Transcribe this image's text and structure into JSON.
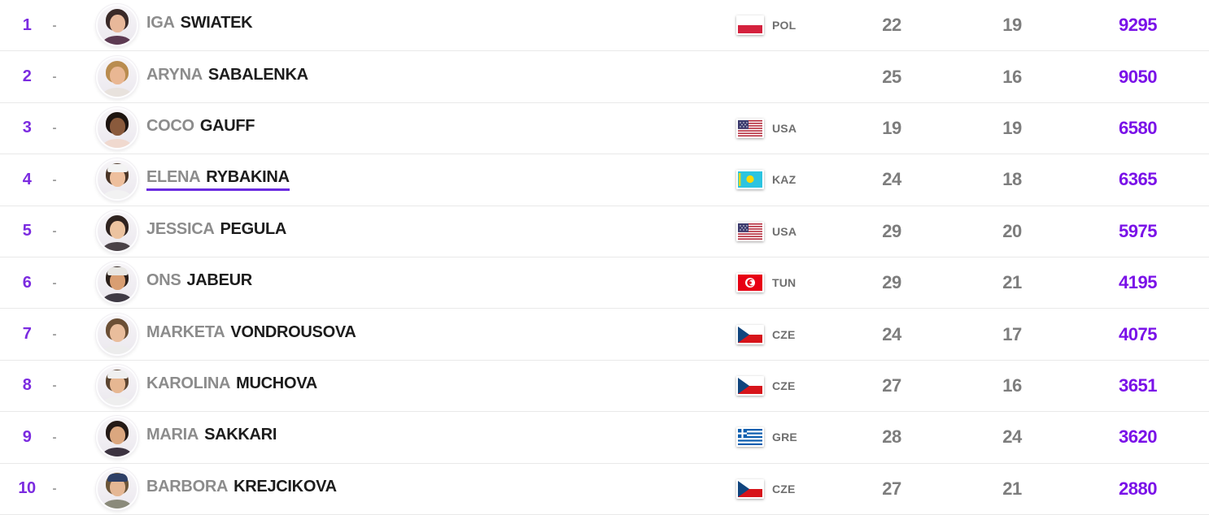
{
  "colors": {
    "accent_purple": "#7a12e8",
    "rank_purple": "#7b2be0",
    "highlight_underline": "#6a2be0",
    "first_name_gray": "#8c8c8c",
    "last_name_black": "#1c1c1c",
    "stat_gray": "#7d7d7d",
    "divider": "#e9e9e9"
  },
  "players": [
    {
      "rank": "1",
      "movement": "-",
      "first_name": "IGA",
      "last_name": "SWIATEK",
      "country_code": "POL",
      "age": "22",
      "tournaments": "19",
      "points": "9295",
      "highlighted": false,
      "avatar": {
        "hair": "#3a2a28",
        "skin": "#e8b89a",
        "shirt": "#5d3a52",
        "headwear": null
      }
    },
    {
      "rank": "2",
      "movement": "-",
      "first_name": "ARYNA",
      "last_name": "SABALENKA",
      "country_code": "",
      "age": "25",
      "tournaments": "16",
      "points": "9050",
      "highlighted": false,
      "avatar": {
        "hair": "#b98c4f",
        "skin": "#e9b793",
        "shirt": "#e8e2dd",
        "headwear": null
      }
    },
    {
      "rank": "3",
      "movement": "-",
      "first_name": "COCO",
      "last_name": "GAUFF",
      "country_code": "USA",
      "age": "19",
      "tournaments": "19",
      "points": "6580",
      "highlighted": false,
      "avatar": {
        "hair": "#1d1410",
        "skin": "#8a5a3c",
        "shirt": "#f0d9cf",
        "headwear": null
      }
    },
    {
      "rank": "4",
      "movement": "-",
      "first_name": "ELENA",
      "last_name": "RYBAKINA",
      "country_code": "KAZ",
      "age": "24",
      "tournaments": "18",
      "points": "6365",
      "highlighted": true,
      "avatar": {
        "hair": "#4a3527",
        "skin": "#eebf9d",
        "shirt": "#f2f2f2",
        "headwear": "#f3f3f3"
      }
    },
    {
      "rank": "5",
      "movement": "-",
      "first_name": "JESSICA",
      "last_name": "PEGULA",
      "country_code": "USA",
      "age": "29",
      "tournaments": "20",
      "points": "5975",
      "highlighted": false,
      "avatar": {
        "hair": "#2f2320",
        "skin": "#ecc3a0",
        "shirt": "#4a4247",
        "headwear": null
      }
    },
    {
      "rank": "6",
      "movement": "-",
      "first_name": "ONS",
      "last_name": "JABEUR",
      "country_code": "TUN",
      "age": "29",
      "tournaments": "21",
      "points": "4195",
      "highlighted": false,
      "avatar": {
        "hair": "#2b1f1a",
        "skin": "#d99e72",
        "shirt": "#3f3a44",
        "headwear": "#e8e6e2"
      }
    },
    {
      "rank": "7",
      "movement": "-",
      "first_name": "MARKETA",
      "last_name": "VONDROUSOVA",
      "country_code": "CZE",
      "age": "24",
      "tournaments": "17",
      "points": "4075",
      "highlighted": false,
      "avatar": {
        "hair": "#6b4f35",
        "skin": "#e9bd9c",
        "shirt": "#ececec",
        "headwear": null
      }
    },
    {
      "rank": "8",
      "movement": "-",
      "first_name": "KAROLINA",
      "last_name": "MUCHOVA",
      "country_code": "CZE",
      "age": "27",
      "tournaments": "16",
      "points": "3651",
      "highlighted": false,
      "avatar": {
        "hair": "#5b4430",
        "skin": "#e6b792",
        "shirt": "#eeeeee",
        "headwear": "#efefef"
      }
    },
    {
      "rank": "9",
      "movement": "-",
      "first_name": "MARIA",
      "last_name": "SAKKARI",
      "country_code": "GRE",
      "age": "28",
      "tournaments": "24",
      "points": "3620",
      "highlighted": false,
      "avatar": {
        "hair": "#241a16",
        "skin": "#dba77f",
        "shirt": "#3c3340",
        "headwear": null
      }
    },
    {
      "rank": "10",
      "movement": "-",
      "first_name": "BARBORA",
      "last_name": "KREJCIKOVA",
      "country_code": "CZE",
      "age": "27",
      "tournaments": "21",
      "points": "2880",
      "highlighted": false,
      "avatar": {
        "hair": "#6d5639",
        "skin": "#e5b794",
        "shirt": "#8a8a7a",
        "headwear": "#2e3f66"
      }
    }
  ]
}
